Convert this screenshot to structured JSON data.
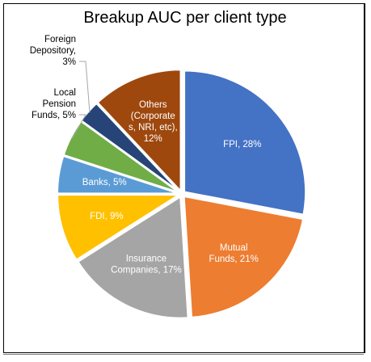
{
  "chart_data": {
    "type": "pie",
    "title": "Breakup AUC per client type",
    "slices": [
      {
        "label_lines": [
          "FPI, 28%"
        ],
        "value": 28,
        "color": "#4472C4",
        "label_pos": "inside"
      },
      {
        "label_lines": [
          "Mutual",
          "Funds, 21%"
        ],
        "value": 21,
        "color": "#ED7D31",
        "label_pos": "inside"
      },
      {
        "label_lines": [
          "Insurance",
          "Companies, 17%"
        ],
        "value": 17,
        "color": "#A5A5A5",
        "label_pos": "inside"
      },
      {
        "label_lines": [
          "FDI, 9%"
        ],
        "value": 9,
        "color": "#FFC000",
        "label_pos": "inside"
      },
      {
        "label_lines": [
          "Banks, 5%"
        ],
        "value": 5,
        "color": "#5B9BD5",
        "label_pos": "inside"
      },
      {
        "label_lines": [
          "Local",
          "Pension",
          "Funds, 5%"
        ],
        "value": 5,
        "color": "#70AD47",
        "label_pos": "outside"
      },
      {
        "label_lines": [
          "Foreign",
          "Depository,",
          "3%"
        ],
        "value": 3,
        "color": "#264478",
        "label_pos": "outside"
      },
      {
        "label_lines": [
          "Others",
          "(Corporate",
          "s, NRI, etc),",
          "12%"
        ],
        "value": 12,
        "color": "#9E480E",
        "label_pos": "inside"
      }
    ]
  }
}
